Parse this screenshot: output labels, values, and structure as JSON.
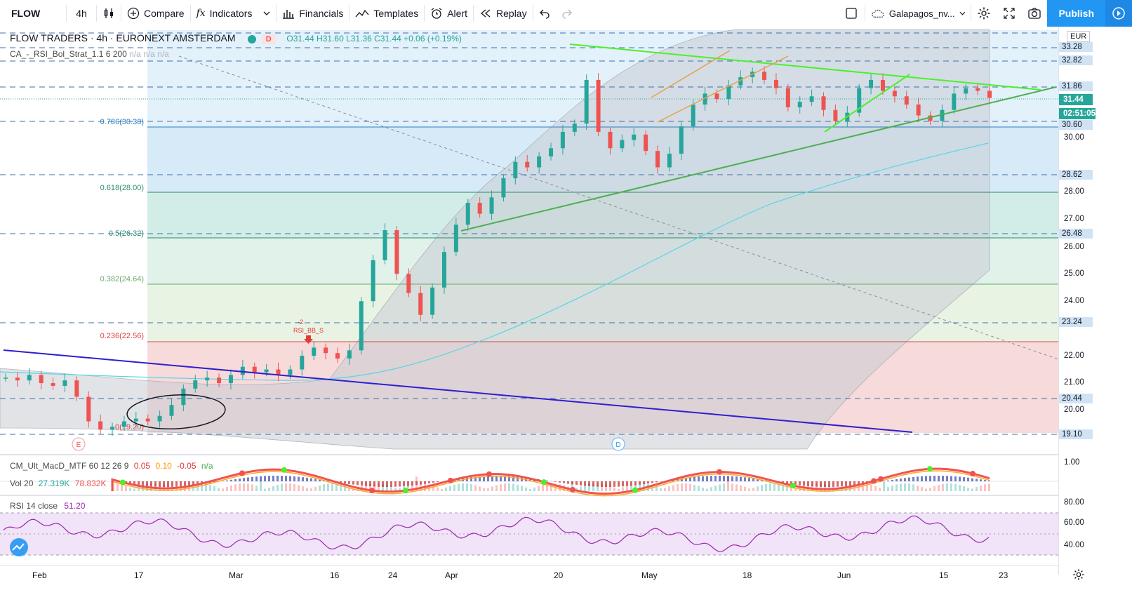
{
  "toolbar": {
    "symbol": "FLOW",
    "interval": "4h",
    "compare": "Compare",
    "indicators": "Indicators",
    "financials": "Financials",
    "templates": "Templates",
    "alert": "Alert",
    "replay": "Replay",
    "layout_name": "Galapagos_nv...",
    "publish": "Publish"
  },
  "legend": {
    "title": "FLOW TRADERS · 4h · EURONEXT AMSTERDAM",
    "badge": "D",
    "ohlc": "O31.44 H31.60 L31.36 C31.44 +0.06 (+0.19%)",
    "strategy": "CA_-_RSI_Bol_Strat_1.1 6 200",
    "strategy_vals": "n/a n/a n/a"
  },
  "macd": {
    "label": "CM_Ult_MacD_MTF 60 12 26 9",
    "v1": "0.05",
    "v2": "0.10",
    "v3": "-0.05",
    "v4": "n/a",
    "vol_label": "Vol 20",
    "vol_v1": "27.319K",
    "vol_v2": "78.832K"
  },
  "rsi": {
    "label": "RSI 14 close",
    "value": "51.20"
  },
  "fib": [
    {
      "label": "0.786(30.38)"
    },
    {
      "label": "0.618(28.00)"
    },
    {
      "label": "0.5(26.32)"
    },
    {
      "label": "0.382(24.64)"
    },
    {
      "label": "0.236(22.56)"
    },
    {
      "label": "0(19.20)"
    }
  ],
  "markers": {
    "signal": "RSI_BB_S",
    "signal_num": "-2",
    "earnings": "E",
    "dividend": "D"
  },
  "price_scale": {
    "currency": "EUR",
    "labels": [
      "33.28",
      "32.82",
      "31.86",
      "30.60",
      "30.00",
      "28.62",
      "28.00",
      "27.00",
      "26.48",
      "26.00",
      "25.00",
      "24.00",
      "23.24",
      "22.00",
      "21.00",
      "20.44",
      "20.00",
      "19.10"
    ],
    "last": "31.44",
    "countdown": "02:51:05",
    "macd_scale": "1.00",
    "rsi_scale": [
      "80.00",
      "60.00",
      "40.00"
    ]
  },
  "time_axis": [
    "Feb",
    "17",
    "Mar",
    "16",
    "24",
    "Apr",
    "20",
    "May",
    "18",
    "Jun",
    "15",
    "23"
  ],
  "colors": {
    "up": "#26a69a",
    "down": "#ef5350",
    "accent": "#2196f3",
    "trend_blue": "#2e1fd1",
    "trend_green": "#4caf50",
    "lime": "#4bf02b",
    "channel": "#e6a04a",
    "rsi": "#9c27b0"
  },
  "chart_data": {
    "type": "candlestick",
    "x_range": [
      "Feb",
      "Jun 23"
    ],
    "ylim": [
      19.0,
      33.5
    ],
    "close": [
      21.2,
      21.1,
      21.3,
      21.0,
      20.9,
      21.1,
      20.5,
      19.6,
      19.3,
      19.4,
      19.6,
      19.7,
      19.6,
      19.8,
      20.2,
      20.8,
      21.1,
      21.2,
      21.0,
      21.3,
      21.6,
      21.4,
      21.5,
      21.3,
      21.5,
      22.0,
      22.3,
      22.1,
      21.9,
      22.2,
      24.0,
      25.5,
      26.6,
      25.0,
      24.3,
      23.5,
      24.5,
      25.8,
      26.8,
      27.6,
      27.2,
      27.8,
      28.5,
      29.1,
      28.9,
      29.3,
      29.6,
      30.2,
      30.5,
      32.1,
      30.2,
      29.6,
      29.9,
      30.1,
      29.5,
      28.9,
      29.4,
      30.4,
      31.2,
      31.6,
      31.4,
      31.9,
      32.2,
      32.4,
      32.1,
      31.8,
      31.1,
      31.3,
      31.5,
      31.0,
      30.6,
      30.9,
      31.8,
      32.1,
      31.7,
      31.5,
      31.2,
      30.8,
      30.6,
      31.0,
      31.6,
      31.8,
      31.7,
      31.44
    ]
  }
}
